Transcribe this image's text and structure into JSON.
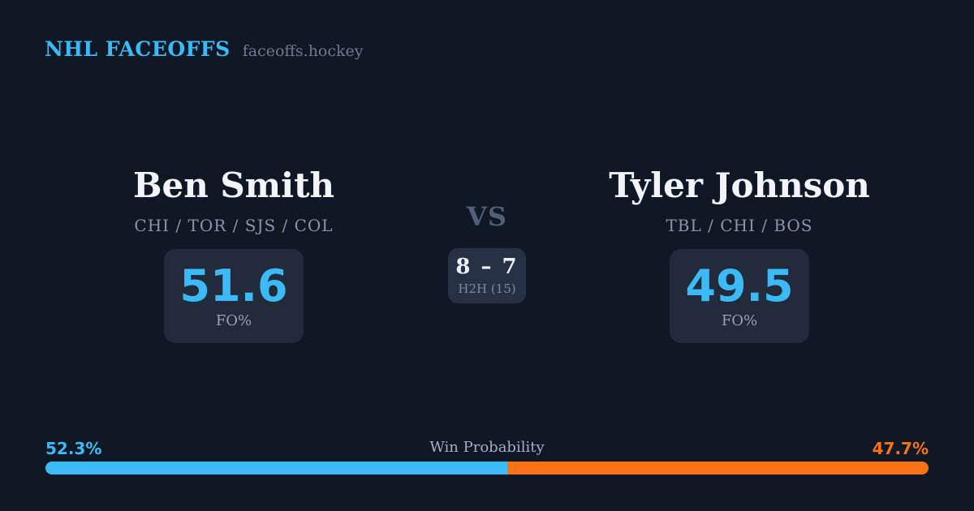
{
  "header": {
    "brand": "NHL FACEOFFS",
    "site": "faceoffs.hockey"
  },
  "matchup": {
    "left": {
      "name": "Ben Smith",
      "teams": "CHI / TOR / SJS / COL",
      "fo_pct": "51.6",
      "stat_label": "FO%"
    },
    "right": {
      "name": "Tyler Johnson",
      "teams": "TBL / CHI / BOS",
      "fo_pct": "49.5",
      "stat_label": "FO%"
    },
    "vs_label": "VS",
    "h2h": {
      "score": "8 – 7",
      "label": "H2H (15)"
    }
  },
  "win_probability": {
    "title": "Win Probability",
    "left_label": "52.3%",
    "right_label": "47.7%",
    "left_value": 52.3,
    "right_value": 47.7
  },
  "colors": {
    "background": "#101826",
    "card": "#212b3c",
    "h2h_card": "#263146",
    "accent_blue": "#3cbaf6",
    "accent_orange": "#f97316"
  }
}
